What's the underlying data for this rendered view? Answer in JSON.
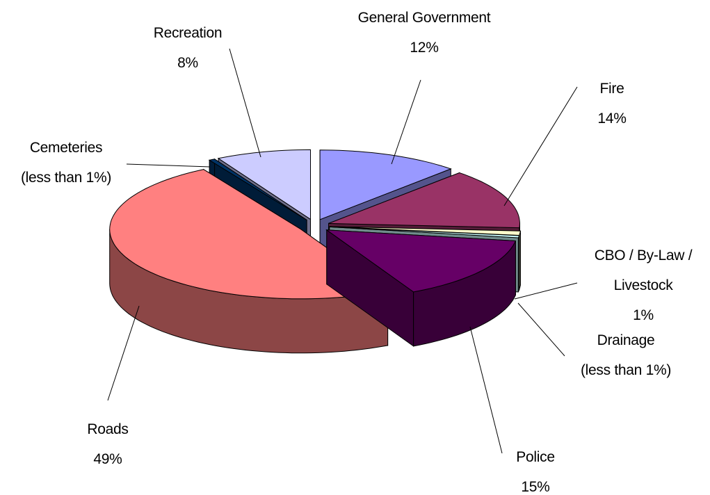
{
  "chart_data": {
    "type": "pie3d",
    "categories": [
      "General Government",
      "Fire",
      "CBO / By-Law / Livestock",
      "Drainage",
      "Police",
      "Roads",
      "Cemeteries",
      "Recreation"
    ],
    "values": [
      12,
      14,
      1,
      0.5,
      15,
      49,
      0.5,
      8
    ],
    "value_labels": [
      "12%",
      "14%",
      "1%",
      "(less than 1%)",
      "15%",
      "49%",
      "(less than 1%)",
      "8%"
    ],
    "colors": [
      "#9999ff",
      "#993366",
      "#ffffcc",
      "#ccffff",
      "#660066",
      "#ff8080",
      "#003366",
      "#ccccff"
    ],
    "exploded": true
  }
}
